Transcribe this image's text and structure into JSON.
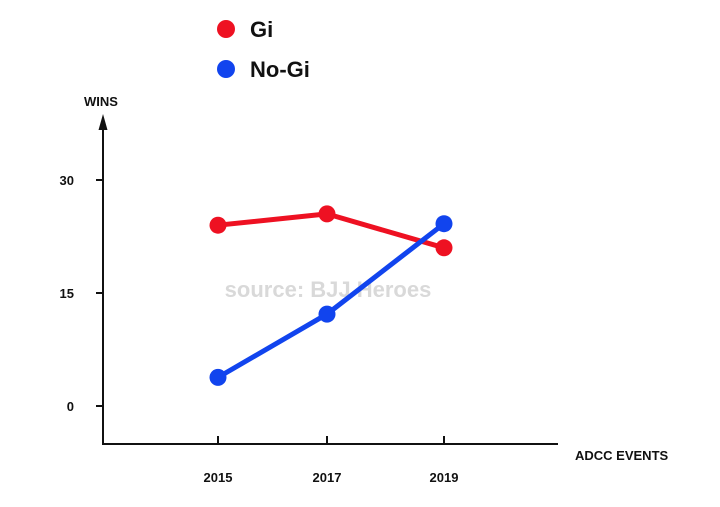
{
  "chart_data": {
    "type": "line",
    "xlabel": "ADCC EVENTS",
    "ylabel": "WINS",
    "categories": [
      "2015",
      "2017",
      "2019"
    ],
    "yticks": [
      0,
      15,
      30
    ],
    "ylim": [
      -5,
      40
    ],
    "grid": false,
    "legend_position": "top-left",
    "annotation": "source: BJJ Heroes",
    "series": [
      {
        "name": "Gi",
        "color": "#ee1122",
        "values": [
          24,
          25.5,
          21
        ]
      },
      {
        "name": "No-Gi",
        "color": "#1144ee",
        "values": [
          3.8,
          12.2,
          24.2
        ]
      }
    ]
  }
}
